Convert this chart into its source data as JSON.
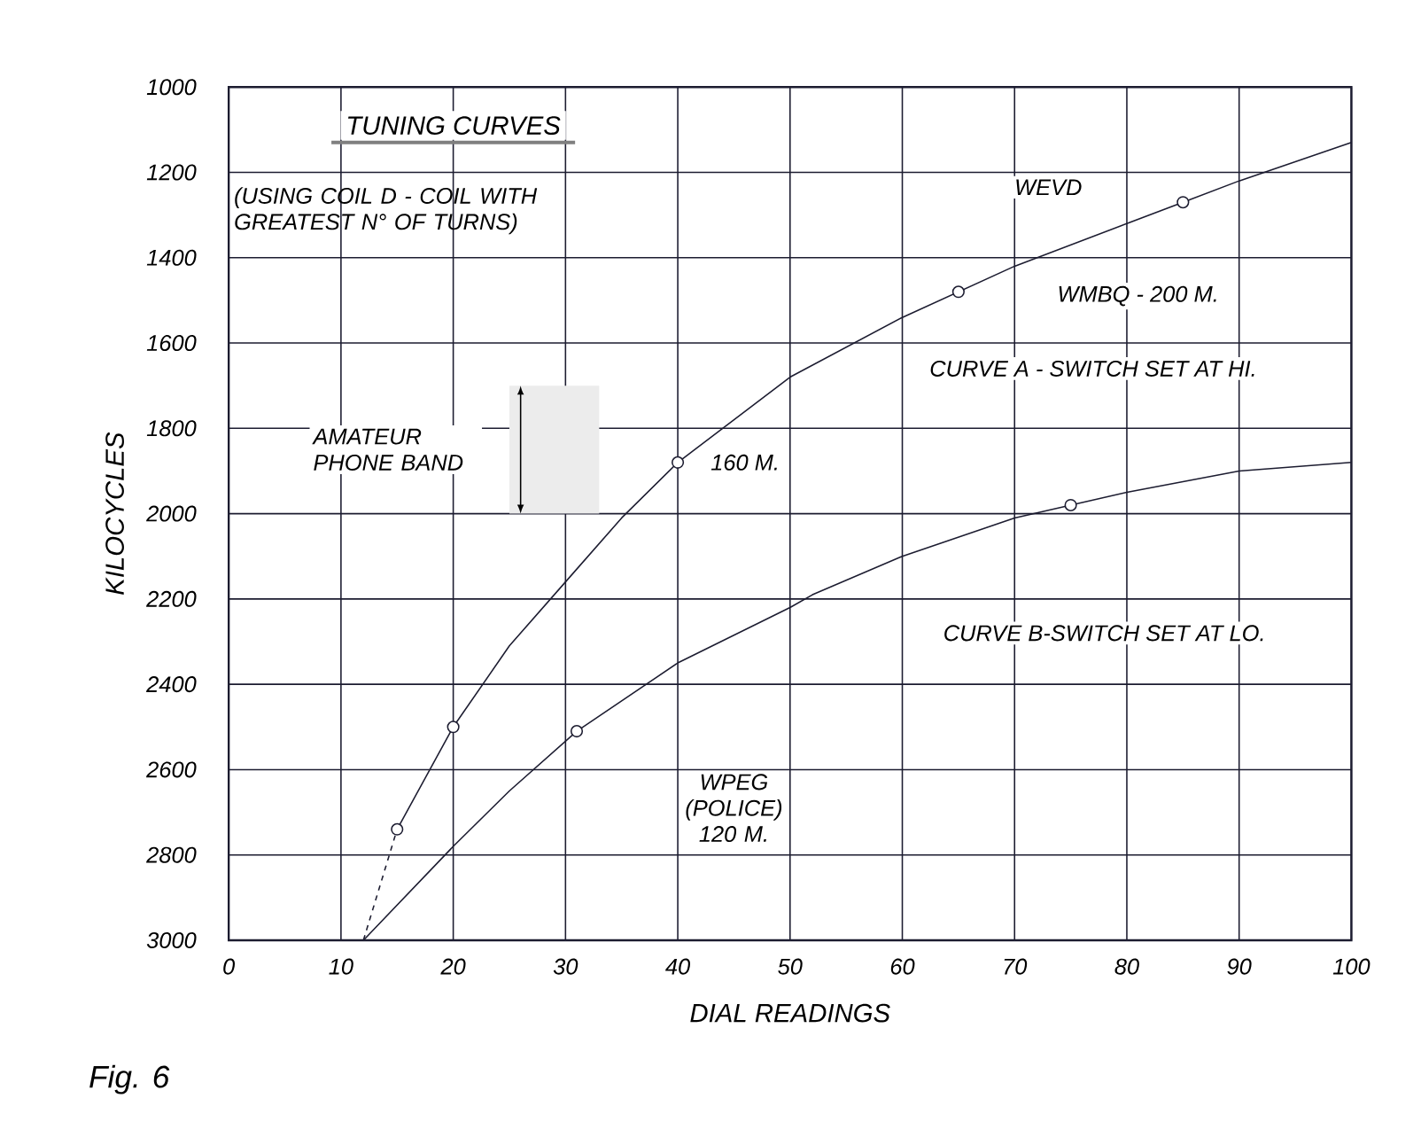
{
  "chart_data": {
    "type": "line",
    "title": "TUNING CURVES",
    "subtitle": "(USING COIL D - COIL WITH GREATEST N° OF TURNS)",
    "xlabel": "DIAL READINGS",
    "ylabel": "KILOCYCLES",
    "xlim": [
      0,
      100
    ],
    "xticks": [
      0,
      10,
      20,
      30,
      40,
      50,
      60,
      70,
      80,
      90,
      100
    ],
    "ylim": [
      3000,
      1000
    ],
    "yticks": [
      1000,
      1200,
      1400,
      1600,
      1800,
      2000,
      2200,
      2400,
      2600,
      2800,
      3000
    ],
    "grid": true,
    "series": [
      {
        "color": "#1c1c30",
        "x": [
          15,
          20,
          25,
          30,
          35,
          40,
          50,
          60,
          65,
          70,
          80,
          85,
          90,
          100
        ],
        "values": [
          2740,
          2500,
          2310,
          2160,
          2010,
          1880,
          1680,
          1540,
          1480,
          1420,
          1320,
          1270,
          1220,
          1130
        ]
      },
      {
        "color": "#1c1c30",
        "line_style": "dashed",
        "x": [
          12,
          15
        ],
        "values": [
          3000,
          2740
        ]
      },
      {
        "color": "#1c1c30",
        "x": [
          12,
          20,
          25,
          31,
          40,
          50,
          52,
          60,
          70,
          75,
          80,
          90,
          100
        ],
        "values": [
          3000,
          2780,
          2650,
          2510,
          2350,
          2220,
          2190,
          2100,
          2010,
          1980,
          1950,
          1900,
          1880
        ]
      },
      {
        "type": "scatter",
        "marker": "circle",
        "color": "#1c1c30",
        "x": [
          15,
          20,
          40,
          65,
          85,
          31,
          75
        ],
        "values": [
          2740,
          2500,
          1880,
          1480,
          1270,
          2510,
          1980
        ]
      }
    ],
    "bands": [
      {
        "axis": "y",
        "from": 1700,
        "to": 2000,
        "label": "AMATEUR PHONE BAND",
        "color": "#ececec"
      }
    ],
    "annotations": [
      "WEVD",
      "WMBQ - 200 M.",
      "CURVE A - SWITCH SET AT HI.",
      "160 M.",
      "CURVE B-SWITCH SET AT LO.",
      "WPEG (POLICE) 120 M.",
      "Fig. 6"
    ]
  }
}
